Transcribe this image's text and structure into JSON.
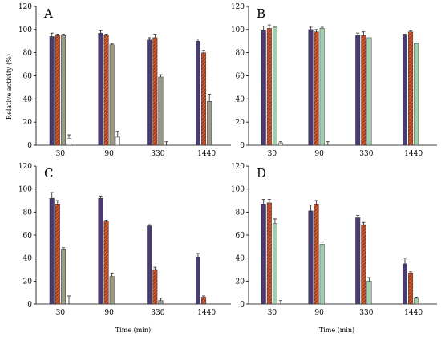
{
  "figure": {
    "ylabel": "Relative activity (%)",
    "xlabel": "Time (min)"
  },
  "colors": {
    "purple": "#4a3b73",
    "red_hatched": "#b23a22",
    "red_hatch_line": "#e8a24a",
    "gray": "#9a9a86",
    "green": "#a4cfae",
    "white": "#ffffff"
  },
  "chart_data": [
    {
      "panel": "A",
      "type": "bar",
      "categories": [
        "30",
        "90",
        "330",
        "1440"
      ],
      "ylim": [
        0,
        120
      ],
      "yticks": [
        0,
        20,
        40,
        60,
        80,
        100,
        120
      ],
      "series": [
        {
          "style": "purple",
          "values": [
            94,
            97,
            91,
            90
          ],
          "errors": [
            3,
            2,
            2,
            2
          ]
        },
        {
          "style": "red_hatched",
          "values": [
            95,
            95,
            93,
            80
          ],
          "errors": [
            1,
            1,
            3,
            2
          ]
        },
        {
          "style": "gray",
          "values": [
            95,
            87,
            59,
            38
          ],
          "errors": [
            1,
            1,
            2,
            6
          ]
        },
        {
          "style": "white",
          "values": [
            6,
            7,
            0,
            null
          ],
          "errors": [
            3,
            5,
            3,
            null
          ]
        }
      ]
    },
    {
      "panel": "B",
      "type": "bar",
      "categories": [
        "30",
        "90",
        "330",
        "1440"
      ],
      "ylim": [
        0,
        120
      ],
      "yticks": [
        0,
        20,
        40,
        60,
        80,
        100,
        120
      ],
      "series": [
        {
          "style": "purple",
          "values": [
            99,
            100,
            95,
            95
          ],
          "errors": [
            4,
            2,
            2,
            1
          ]
        },
        {
          "style": "red_hatched",
          "values": [
            101,
            98,
            95,
            98
          ],
          "errors": [
            3,
            2,
            3,
            1
          ]
        },
        {
          "style": "green",
          "values": [
            102,
            101,
            93,
            88
          ],
          "errors": [
            1,
            1,
            0,
            0
          ]
        },
        {
          "style": "white",
          "values": [
            2,
            0,
            null,
            null
          ],
          "errors": [
            1,
            3,
            null,
            null
          ]
        }
      ]
    },
    {
      "panel": "C",
      "type": "bar",
      "categories": [
        "30",
        "90",
        "330",
        "1440"
      ],
      "ylim": [
        0,
        120
      ],
      "yticks": [
        0,
        20,
        40,
        60,
        80,
        100,
        120
      ],
      "series": [
        {
          "style": "purple",
          "values": [
            92,
            92,
            68,
            41
          ],
          "errors": [
            5,
            2,
            1,
            3
          ]
        },
        {
          "style": "red_hatched",
          "values": [
            87,
            72,
            30,
            6
          ],
          "errors": [
            3,
            1,
            2,
            1
          ]
        },
        {
          "style": "gray",
          "values": [
            48,
            24,
            3,
            null
          ],
          "errors": [
            1,
            3,
            2,
            null
          ]
        },
        {
          "style": "white",
          "values": [
            0,
            null,
            null,
            null
          ],
          "errors": [
            7,
            null,
            null,
            null
          ]
        }
      ]
    },
    {
      "panel": "D",
      "type": "bar",
      "categories": [
        "30",
        "90",
        "330",
        "1440"
      ],
      "ylim": [
        0,
        120
      ],
      "yticks": [
        0,
        20,
        40,
        60,
        80,
        100,
        120
      ],
      "series": [
        {
          "style": "purple",
          "values": [
            87,
            81,
            75,
            35
          ],
          "errors": [
            4,
            5,
            2,
            5
          ]
        },
        {
          "style": "red_hatched",
          "values": [
            88,
            87,
            69,
            27
          ],
          "errors": [
            3,
            3,
            2,
            1
          ]
        },
        {
          "style": "green",
          "values": [
            70,
            52,
            20,
            5
          ],
          "errors": [
            4,
            2,
            3,
            1
          ]
        },
        {
          "style": "white",
          "values": [
            0,
            null,
            null,
            null
          ],
          "errors": [
            3,
            null,
            null,
            null
          ]
        }
      ]
    }
  ]
}
